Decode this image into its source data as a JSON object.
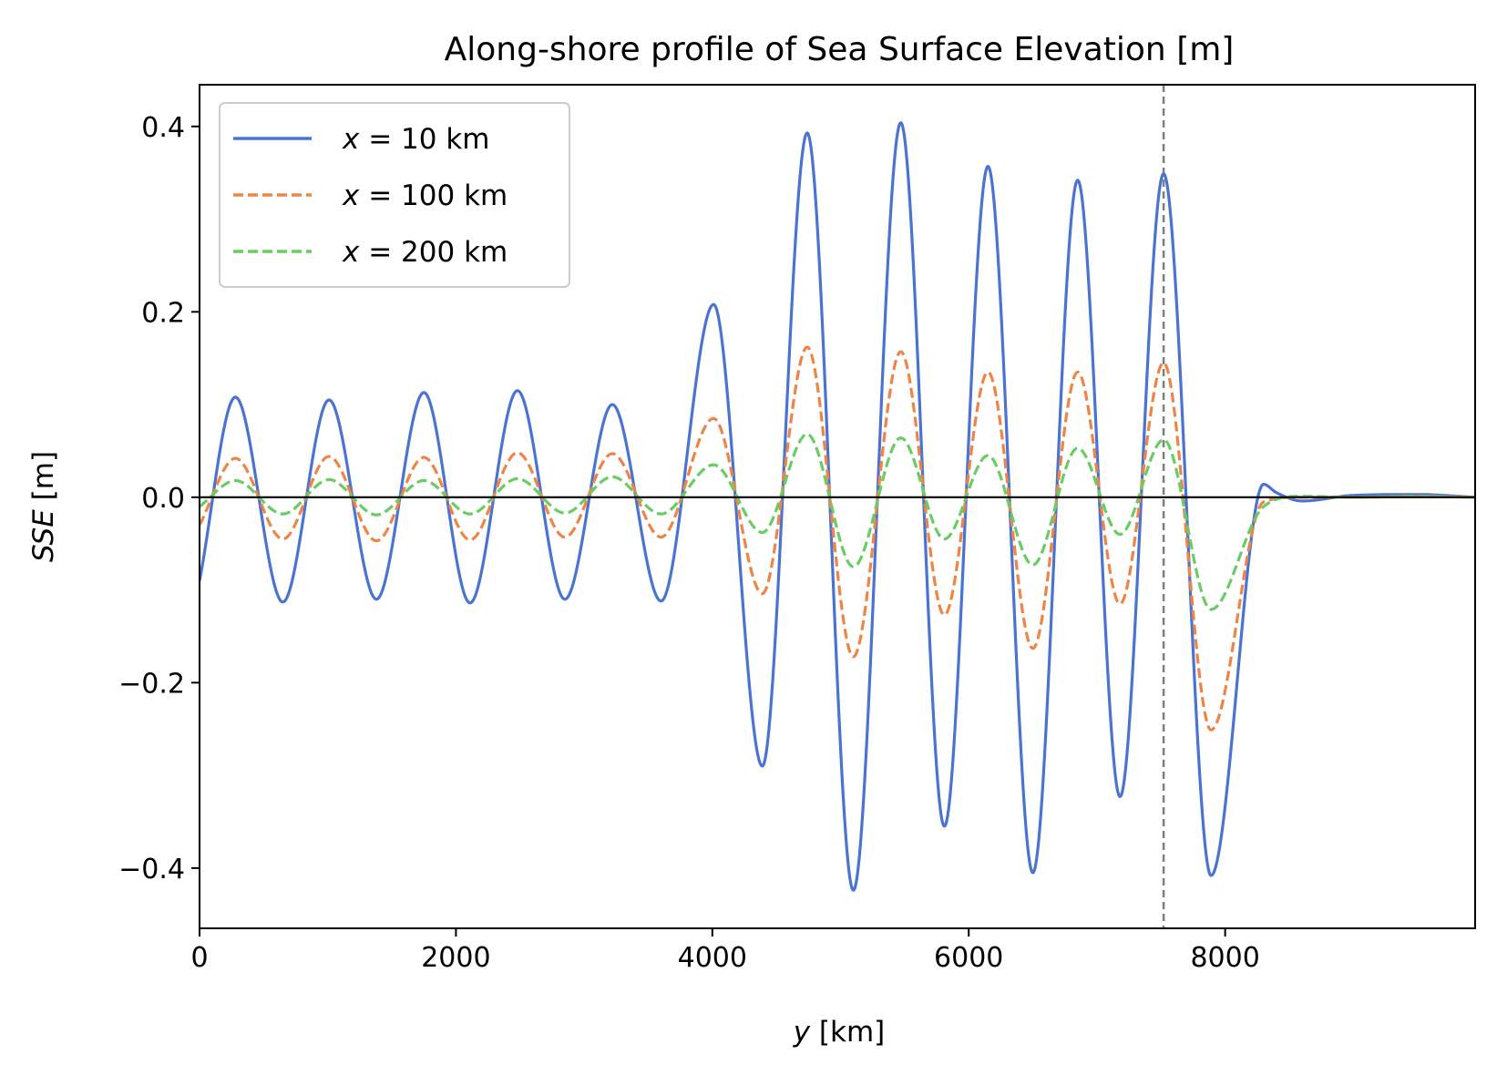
{
  "chart_data": {
    "type": "line",
    "title": "Along-shore profile of Sea Surface Elevation [m]",
    "xlabel_var": "y",
    "xlabel_unit": " [km]",
    "ylabel_var": "SSE",
    "ylabel_unit": " [m]",
    "xlim": [
      0,
      9950
    ],
    "ylim": [
      -0.465,
      0.445
    ],
    "xticks": [
      0,
      2000,
      4000,
      6000,
      8000
    ],
    "xtick_labels": [
      "0",
      "2000",
      "4000",
      "6000",
      "8000"
    ],
    "yticks": [
      -0.4,
      -0.2,
      0.0,
      0.2,
      0.4
    ],
    "ytick_labels": [
      "−0.4",
      "−0.2",
      "0.0",
      "0.2",
      "0.4"
    ],
    "grid": false,
    "legend_position": "top-left",
    "reference_lines": {
      "horizontal_y": 0.0,
      "vertical_x": 7520
    },
    "series": [
      {
        "legend_var": "x",
        "legend_text": " = 10 km",
        "color": "#4a74d0",
        "dash": "solid",
        "x": [
          0,
          280,
          650,
          1010,
          1380,
          1750,
          2110,
          2480,
          2850,
          3220,
          3600,
          4010,
          4390,
          4740,
          5100,
          5470,
          5810,
          6150,
          6500,
          6850,
          7180,
          7520,
          7890,
          8300,
          8400,
          8600,
          9000,
          9500,
          9950
        ],
        "y": [
          -0.09,
          0.108,
          -0.113,
          0.105,
          -0.11,
          0.113,
          -0.114,
          0.115,
          -0.11,
          0.1,
          -0.112,
          0.208,
          -0.29,
          0.393,
          -0.424,
          0.404,
          -0.355,
          0.357,
          -0.405,
          0.342,
          -0.323,
          0.349,
          -0.408,
          0.014,
          0.005,
          -0.004,
          0.002,
          0.003,
          0.0
        ]
      },
      {
        "legend_var": "x",
        "legend_text": " = 100 km",
        "color": "#ee8547",
        "dash": "dashed",
        "x": [
          0,
          280,
          650,
          1010,
          1380,
          1750,
          2110,
          2480,
          2850,
          3220,
          3600,
          4010,
          4390,
          4740,
          5100,
          5470,
          5810,
          6150,
          6500,
          6850,
          7180,
          7520,
          7890,
          8300,
          8600,
          9000,
          9500,
          9950
        ],
        "y": [
          -0.03,
          0.042,
          -0.045,
          0.044,
          -0.047,
          0.043,
          -0.046,
          0.048,
          -0.043,
          0.047,
          -0.043,
          0.085,
          -0.104,
          0.162,
          -0.172,
          0.157,
          -0.127,
          0.135,
          -0.163,
          0.135,
          -0.115,
          0.145,
          -0.251,
          -0.005,
          0.0,
          0.0,
          0.001,
          0.0
        ]
      },
      {
        "legend_var": "x",
        "legend_text": " = 200 km",
        "color": "#6acc64",
        "dash": "dashed",
        "x": [
          0,
          280,
          650,
          1010,
          1380,
          1750,
          2110,
          2480,
          2850,
          3220,
          3600,
          4010,
          4390,
          4740,
          5100,
          5470,
          5810,
          6150,
          6500,
          6850,
          7180,
          7520,
          7890,
          8300,
          8600,
          9000,
          9500,
          9950
        ],
        "y": [
          -0.01,
          0.018,
          -0.018,
          0.019,
          -0.019,
          0.018,
          -0.018,
          0.02,
          -0.017,
          0.022,
          -0.018,
          0.035,
          -0.038,
          0.068,
          -0.075,
          0.064,
          -0.045,
          0.045,
          -0.073,
          0.053,
          -0.04,
          0.062,
          -0.121,
          -0.01,
          0.001,
          0.0,
          0.001,
          0.0
        ]
      }
    ]
  }
}
